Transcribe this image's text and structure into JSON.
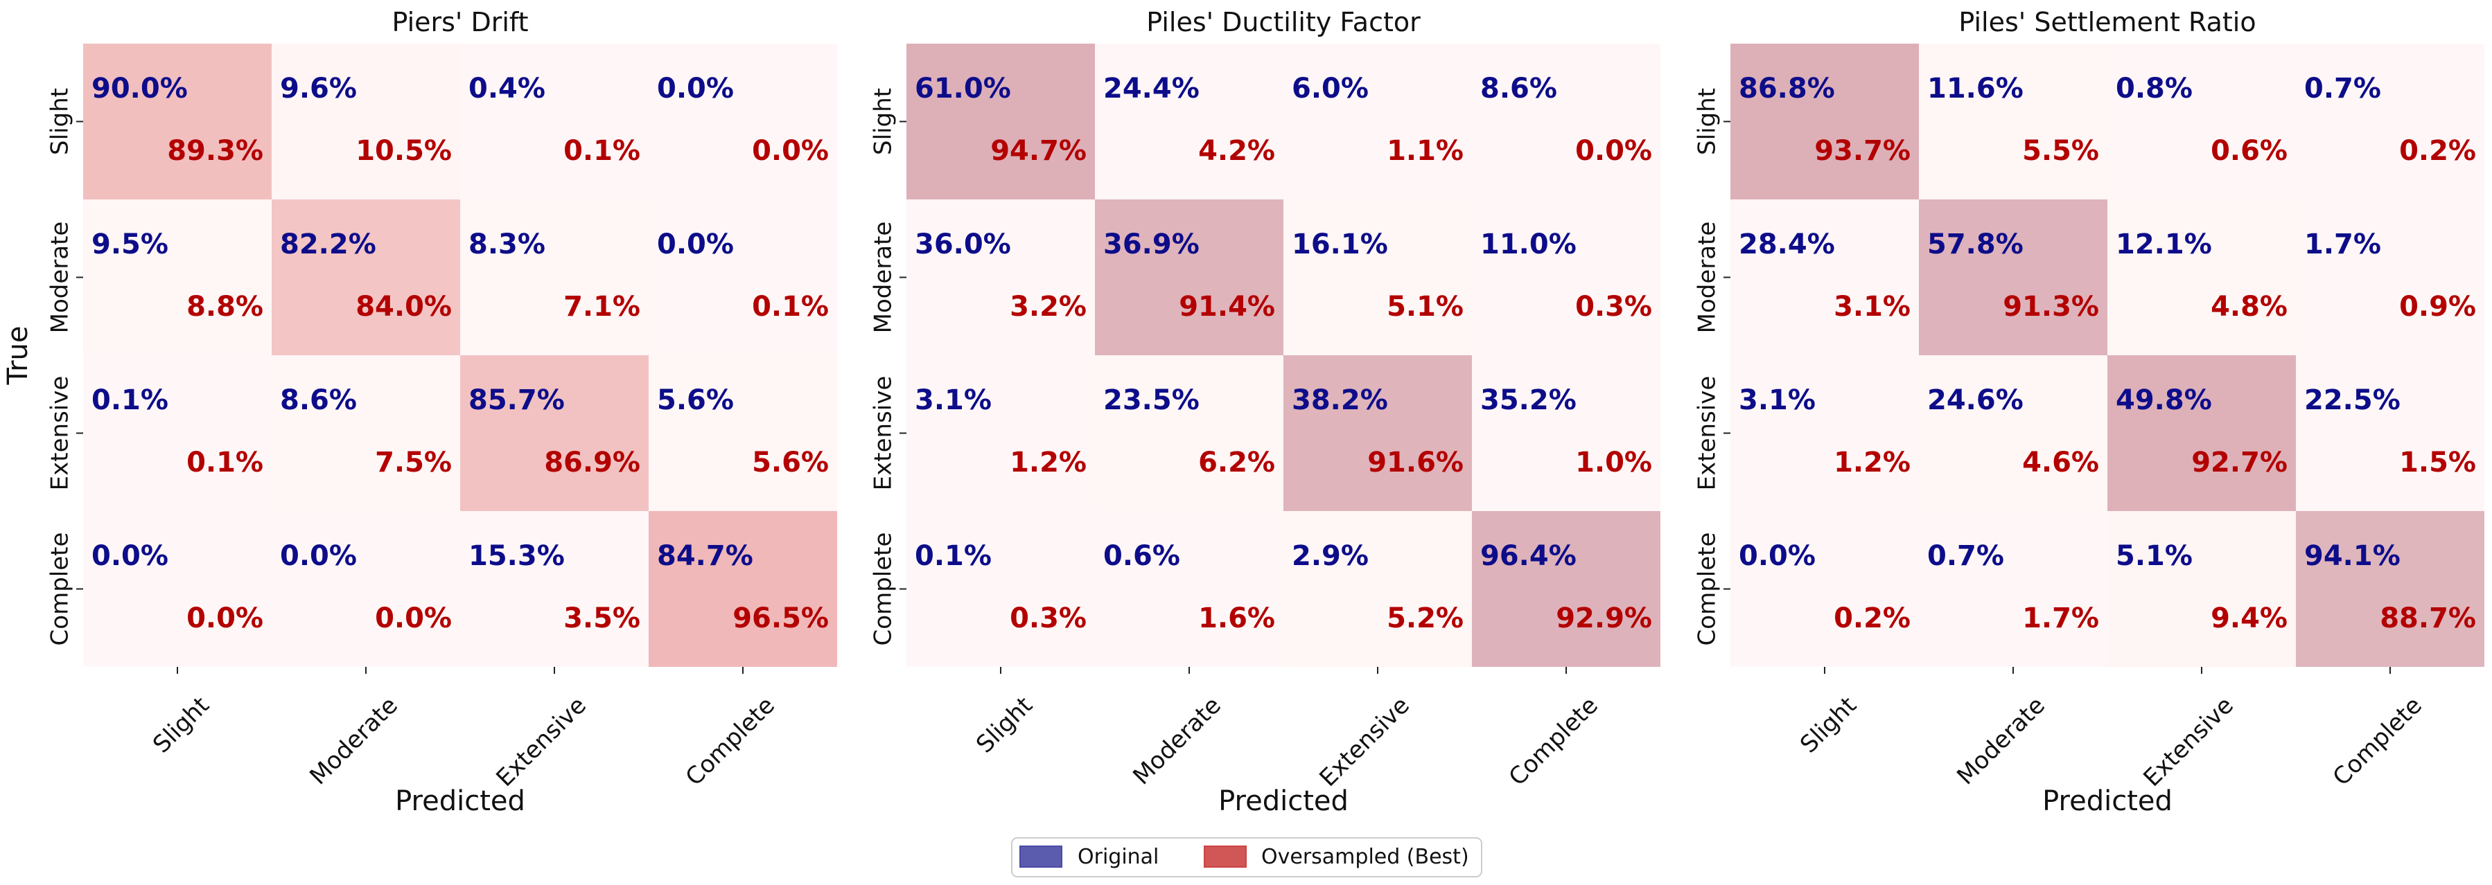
{
  "chart_data": [
    {
      "type": "heatmap",
      "title": "Piers' Drift",
      "xlabel": "Predicted",
      "ylabel": "True",
      "row_labels": [
        "Slight",
        "Moderate",
        "Extensive",
        "Complete"
      ],
      "col_labels": [
        "Slight",
        "Moderate",
        "Extensive",
        "Complete"
      ],
      "series": [
        {
          "name": "Original",
          "values": [
            [
              90.0,
              9.6,
              0.4,
              0.0
            ],
            [
              9.5,
              82.2,
              8.3,
              0.0
            ],
            [
              0.1,
              8.6,
              85.7,
              5.6
            ],
            [
              0.0,
              0.0,
              15.3,
              84.7
            ]
          ]
        },
        {
          "name": "Oversampled (Best)",
          "values": [
            [
              89.3,
              10.5,
              0.1,
              0.0
            ],
            [
              8.8,
              84.0,
              7.1,
              0.1
            ],
            [
              0.1,
              7.5,
              86.9,
              5.6
            ],
            [
              0.0,
              0.0,
              3.5,
              96.5
            ]
          ]
        }
      ]
    },
    {
      "type": "heatmap",
      "title": "Piles' Ductility Factor",
      "xlabel": "Predicted",
      "ylabel": "",
      "row_labels": [
        "Slight",
        "Moderate",
        "Extensive",
        "Complete"
      ],
      "col_labels": [
        "Slight",
        "Moderate",
        "Extensive",
        "Complete"
      ],
      "series": [
        {
          "name": "Original",
          "values": [
            [
              61.0,
              24.4,
              6.0,
              8.6
            ],
            [
              36.0,
              36.9,
              16.1,
              11.0
            ],
            [
              3.1,
              23.5,
              38.2,
              35.2
            ],
            [
              0.1,
              0.6,
              2.9,
              96.4
            ]
          ]
        },
        {
          "name": "Oversampled (Best)",
          "values": [
            [
              94.7,
              4.2,
              1.1,
              0.0
            ],
            [
              3.2,
              91.4,
              5.1,
              0.3
            ],
            [
              1.2,
              6.2,
              91.6,
              1.0
            ],
            [
              0.3,
              1.6,
              5.2,
              92.9
            ]
          ]
        }
      ]
    },
    {
      "type": "heatmap",
      "title": "Piles' Settlement Ratio",
      "xlabel": "Predicted",
      "ylabel": "",
      "row_labels": [
        "Slight",
        "Moderate",
        "Extensive",
        "Complete"
      ],
      "col_labels": [
        "Slight",
        "Moderate",
        "Extensive",
        "Complete"
      ],
      "series": [
        {
          "name": "Original",
          "values": [
            [
              86.8,
              11.6,
              0.8,
              0.7
            ],
            [
              28.4,
              57.8,
              12.1,
              1.7
            ],
            [
              3.1,
              24.6,
              49.8,
              22.5
            ],
            [
              0.0,
              0.7,
              5.1,
              94.1
            ]
          ]
        },
        {
          "name": "Oversampled (Best)",
          "values": [
            [
              93.7,
              5.5,
              0.6,
              0.2
            ],
            [
              3.1,
              91.3,
              4.8,
              0.9
            ],
            [
              1.2,
              4.6,
              92.7,
              1.5
            ],
            [
              0.2,
              1.7,
              9.4,
              88.7
            ]
          ]
        }
      ]
    }
  ],
  "legend": {
    "location": "bottom-center",
    "items": [
      {
        "label": "Original",
        "color": "#4a4aa6"
      },
      {
        "label": "Oversampled (Best)",
        "color": "#cc4444"
      }
    ]
  },
  "colors": {
    "original_text": "#0d0d8a",
    "oversampled_text": "#b30000",
    "cell_base": "#fff7f7",
    "cell_piers_high": "#f0b8b8",
    "cell_piles_high": "#ddb0b8"
  }
}
